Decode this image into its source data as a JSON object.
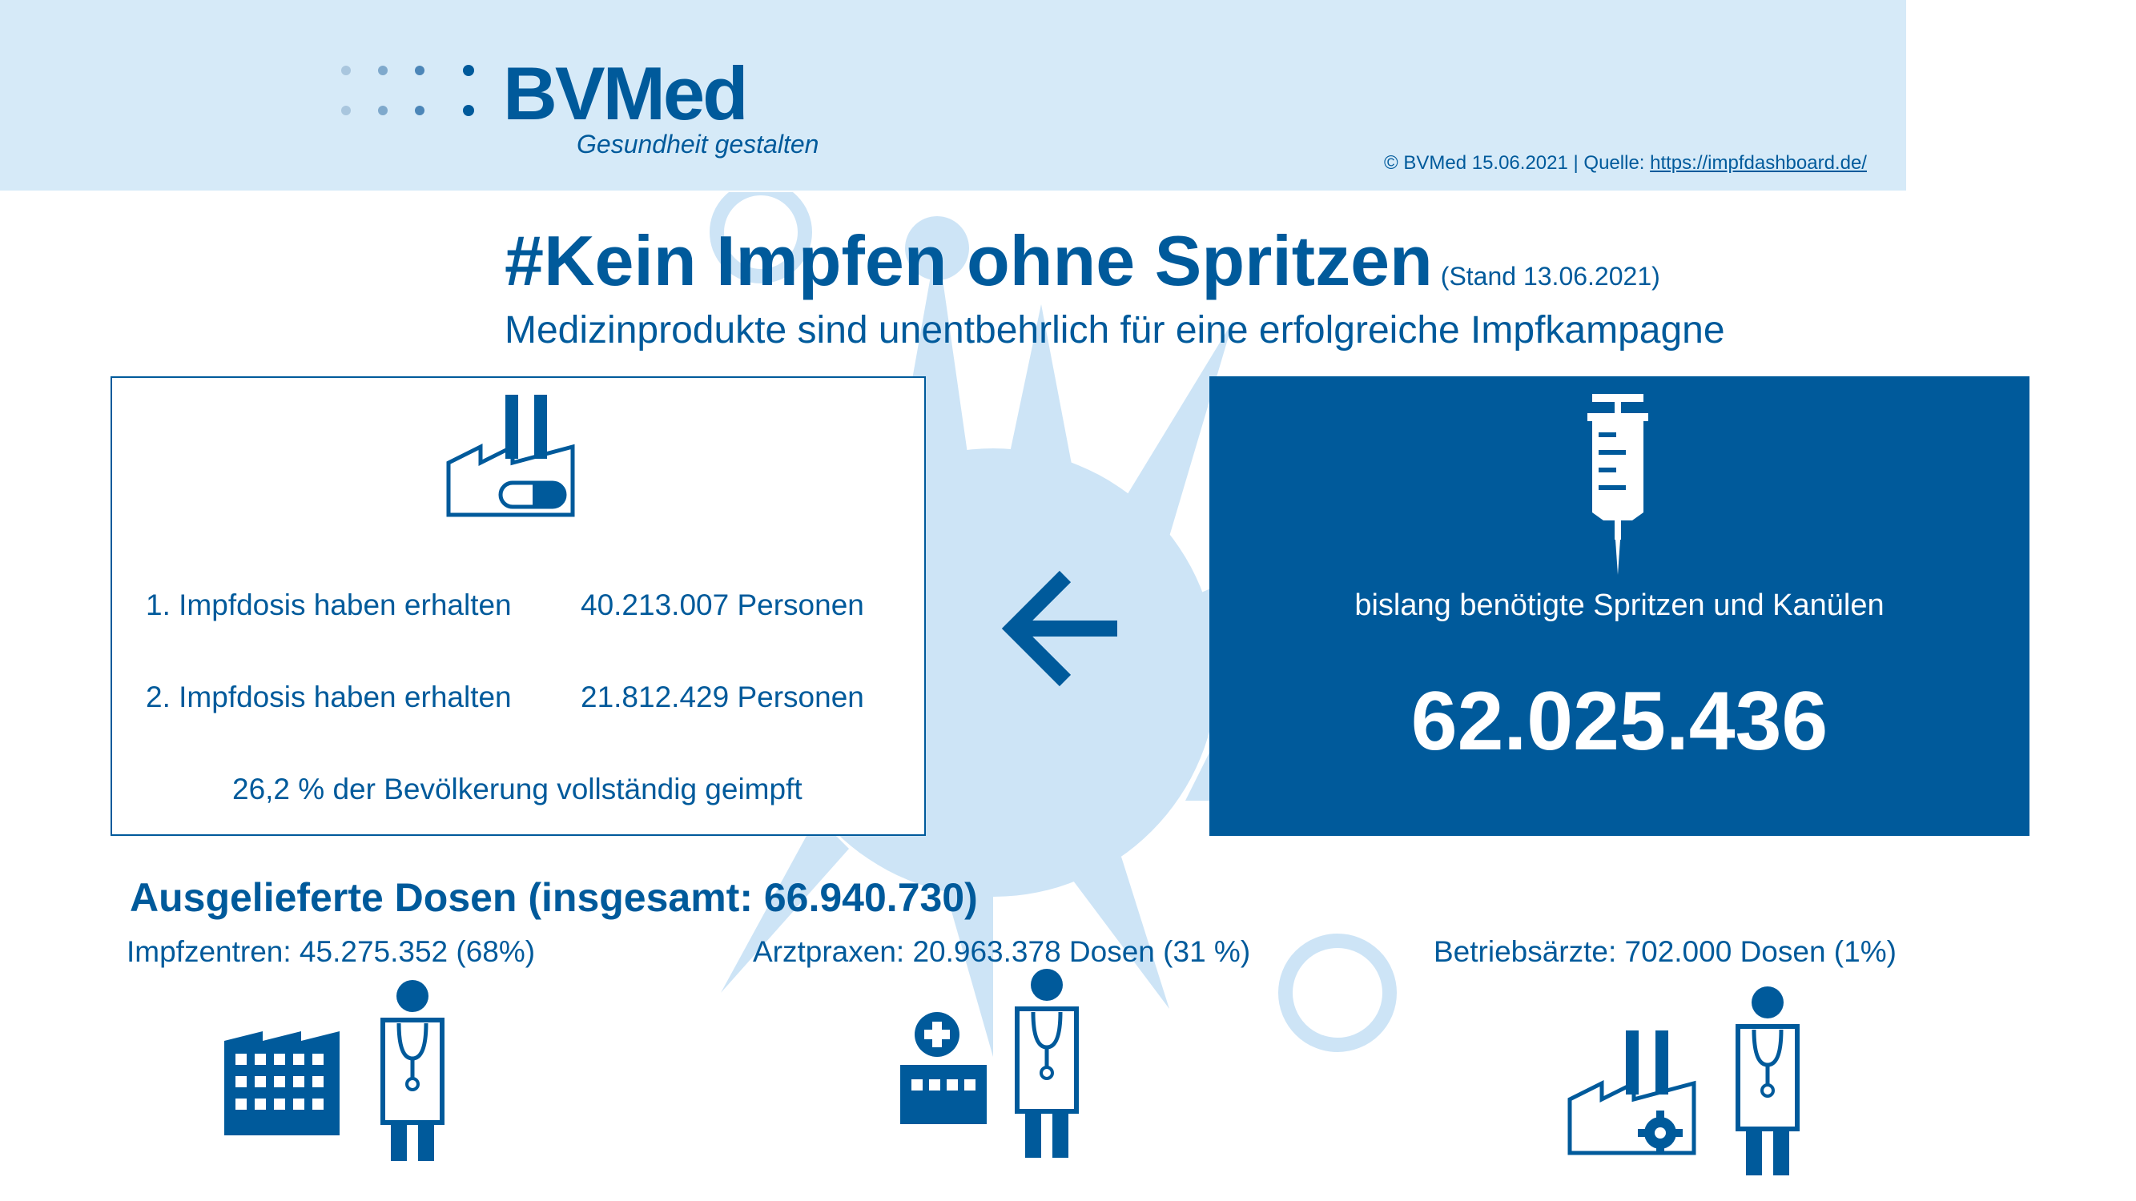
{
  "logo": {
    "text": "BVMed",
    "tagline": "Gesundheit gestalten"
  },
  "source": {
    "prefix": "© BVMed 15.06.2021 | Quelle: ",
    "link": "https://impfdashboard.de/"
  },
  "title": {
    "main": "#Kein Impfen ohne Spritzen",
    "stand": "(Stand 13.06.2021)"
  },
  "subtitle": "Medizinprodukte sind unentbehrlich für eine erfolgreiche Impfkampagne",
  "vaccination": {
    "dose1_label": "1. Impfdosis haben erhalten",
    "dose1_value": "40.213.007 Personen",
    "dose2_label": "2. Impfdosis haben erhalten",
    "dose2_value": "21.812.429 Personen",
    "fully": "26,2 % der Bevölkerung vollständig geimpft"
  },
  "syringes": {
    "label": "bislang benötigte Spritzen und Kanülen",
    "count": "62.025.436"
  },
  "delivered": {
    "title": "Ausgelieferte Dosen (insgesamt: 66.940.730)",
    "categories": [
      {
        "label": "Impfzentren: 45.275.352 (68%)"
      },
      {
        "label": "Arztpraxen: 20.963.378 Dosen (31 %)"
      },
      {
        "label": "Betriebsärzte: 702.000 Dosen (1%)"
      }
    ]
  },
  "colors": {
    "brand": "#005a9b",
    "band": "#d6eaf8",
    "splash": "#cde4f6"
  },
  "icons": [
    "factory-pill-icon",
    "syringe-icon",
    "arrow-left-icon",
    "building-icon",
    "doctor-icon",
    "clinic-icon",
    "factory-gear-icon"
  ]
}
